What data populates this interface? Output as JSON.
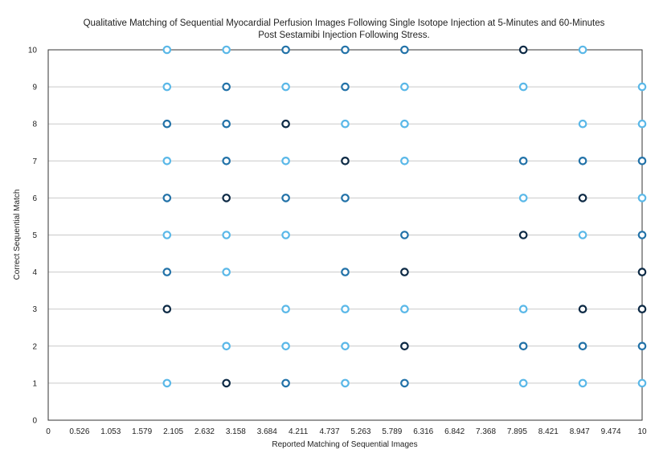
{
  "chart_data": {
    "type": "scatter",
    "title_lines": [
      "Qualitative Matching of Sequential Myocardial Perfusion Images Following Single Isotope Injection at 5-Minutes and 60-Minutes",
      "Post Sestamibi Injection Following Stress."
    ],
    "xlabel": "Reported Matching of Sequential Images",
    "ylabel": "Correct Sequential Match",
    "xlim": [
      0,
      10
    ],
    "ylim": [
      0,
      10
    ],
    "x_ticks": [
      "0",
      "0.526",
      "1.053",
      "1.579",
      "2.105",
      "2.632",
      "3.158",
      "3.684",
      "4.211",
      "4.737",
      "5.263",
      "5.789",
      "6.316",
      "6.842",
      "7.368",
      "7.895",
      "8.421",
      "8.947",
      "9.474",
      "10"
    ],
    "y_ticks": [
      "0",
      "1",
      "2",
      "3",
      "4",
      "5",
      "6",
      "7",
      "8",
      "9",
      "10"
    ],
    "grid": "horizontal",
    "colors": {
      "dark": "#0d2a45",
      "mid": "#2272a8",
      "light": "#5ab8e8"
    },
    "points": [
      {
        "x": 2,
        "y": 10,
        "c": "light"
      },
      {
        "x": 2,
        "y": 9,
        "c": "light"
      },
      {
        "x": 2,
        "y": 8,
        "c": "mid"
      },
      {
        "x": 2,
        "y": 7,
        "c": "light"
      },
      {
        "x": 2,
        "y": 6,
        "c": "mid"
      },
      {
        "x": 2,
        "y": 5,
        "c": "light"
      },
      {
        "x": 2,
        "y": 4,
        "c": "mid"
      },
      {
        "x": 2,
        "y": 3,
        "c": "dark"
      },
      {
        "x": 2,
        "y": 1,
        "c": "light"
      },
      {
        "x": 3,
        "y": 10,
        "c": "light"
      },
      {
        "x": 3,
        "y": 9,
        "c": "mid"
      },
      {
        "x": 3,
        "y": 8,
        "c": "mid"
      },
      {
        "x": 3,
        "y": 7,
        "c": "mid"
      },
      {
        "x": 3,
        "y": 6,
        "c": "dark"
      },
      {
        "x": 3,
        "y": 5,
        "c": "light"
      },
      {
        "x": 3,
        "y": 4,
        "c": "light"
      },
      {
        "x": 3,
        "y": 2,
        "c": "light"
      },
      {
        "x": 3,
        "y": 1,
        "c": "dark"
      },
      {
        "x": 4,
        "y": 10,
        "c": "mid"
      },
      {
        "x": 4,
        "y": 9,
        "c": "light"
      },
      {
        "x": 4,
        "y": 8,
        "c": "dark"
      },
      {
        "x": 4,
        "y": 7,
        "c": "light"
      },
      {
        "x": 4,
        "y": 6,
        "c": "mid"
      },
      {
        "x": 4,
        "y": 5,
        "c": "light"
      },
      {
        "x": 4,
        "y": 3,
        "c": "light"
      },
      {
        "x": 4,
        "y": 2,
        "c": "light"
      },
      {
        "x": 4,
        "y": 1,
        "c": "mid"
      },
      {
        "x": 5,
        "y": 10,
        "c": "mid"
      },
      {
        "x": 5,
        "y": 9,
        "c": "mid"
      },
      {
        "x": 5,
        "y": 8,
        "c": "light"
      },
      {
        "x": 5,
        "y": 7,
        "c": "dark"
      },
      {
        "x": 5,
        "y": 6,
        "c": "mid"
      },
      {
        "x": 5,
        "y": 4,
        "c": "mid"
      },
      {
        "x": 5,
        "y": 3,
        "c": "light"
      },
      {
        "x": 5,
        "y": 2,
        "c": "light"
      },
      {
        "x": 5,
        "y": 1,
        "c": "light"
      },
      {
        "x": 6,
        "y": 10,
        "c": "mid"
      },
      {
        "x": 6,
        "y": 9,
        "c": "light"
      },
      {
        "x": 6,
        "y": 8,
        "c": "light"
      },
      {
        "x": 6,
        "y": 7,
        "c": "light"
      },
      {
        "x": 6,
        "y": 5,
        "c": "mid"
      },
      {
        "x": 6,
        "y": 4,
        "c": "dark"
      },
      {
        "x": 6,
        "y": 3,
        "c": "light"
      },
      {
        "x": 6,
        "y": 2,
        "c": "dark"
      },
      {
        "x": 6,
        "y": 1,
        "c": "mid"
      },
      {
        "x": 8,
        "y": 10,
        "c": "dark"
      },
      {
        "x": 8,
        "y": 9,
        "c": "light"
      },
      {
        "x": 8,
        "y": 7,
        "c": "mid"
      },
      {
        "x": 8,
        "y": 6,
        "c": "light"
      },
      {
        "x": 8,
        "y": 5,
        "c": "dark"
      },
      {
        "x": 8,
        "y": 3,
        "c": "light"
      },
      {
        "x": 8,
        "y": 2,
        "c": "mid"
      },
      {
        "x": 8,
        "y": 1,
        "c": "light"
      },
      {
        "x": 9,
        "y": 10,
        "c": "light"
      },
      {
        "x": 9,
        "y": 8,
        "c": "light"
      },
      {
        "x": 9,
        "y": 7,
        "c": "mid"
      },
      {
        "x": 9,
        "y": 6,
        "c": "dark"
      },
      {
        "x": 9,
        "y": 5,
        "c": "light"
      },
      {
        "x": 9,
        "y": 3,
        "c": "dark"
      },
      {
        "x": 9,
        "y": 2,
        "c": "mid"
      },
      {
        "x": 9,
        "y": 1,
        "c": "light"
      },
      {
        "x": 10,
        "y": 9,
        "c": "light"
      },
      {
        "x": 10,
        "y": 8,
        "c": "light"
      },
      {
        "x": 10,
        "y": 7,
        "c": "mid"
      },
      {
        "x": 10,
        "y": 6,
        "c": "light"
      },
      {
        "x": 10,
        "y": 5,
        "c": "mid"
      },
      {
        "x": 10,
        "y": 4,
        "c": "dark"
      },
      {
        "x": 10,
        "y": 3,
        "c": "dark"
      },
      {
        "x": 10,
        "y": 2,
        "c": "mid"
      },
      {
        "x": 10,
        "y": 1,
        "c": "light"
      }
    ]
  }
}
